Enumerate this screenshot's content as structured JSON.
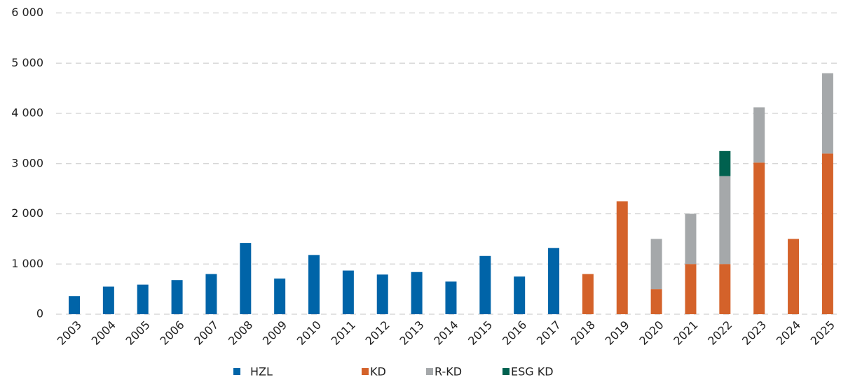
{
  "chart_data": {
    "type": "stacked_bar",
    "categories": [
      "2003",
      "2004",
      "2005",
      "2006",
      "2007",
      "2008",
      "2009",
      "2010",
      "2011",
      "2012",
      "2013",
      "2014",
      "2015",
      "2016",
      "2017",
      "2018",
      "2019",
      "2020",
      "2021",
      "2022",
      "2023",
      "2024",
      "2025"
    ],
    "series": [
      {
        "name": "HZL",
        "color": "#0064a8",
        "values": [
          360,
          550,
          590,
          680,
          800,
          1420,
          710,
          1180,
          870,
          790,
          840,
          650,
          1160,
          750,
          1320,
          null,
          null,
          null,
          null,
          null,
          null,
          null,
          null
        ]
      },
      {
        "name": "KD",
        "color": "#d4622a",
        "values": [
          null,
          null,
          null,
          null,
          null,
          null,
          null,
          null,
          null,
          null,
          null,
          null,
          null,
          null,
          null,
          800,
          2250,
          500,
          1000,
          1000,
          3020,
          1500,
          3200
        ]
      },
      {
        "name": "R-KD",
        "color": "#a5a8aa",
        "values": [
          null,
          null,
          null,
          null,
          null,
          null,
          null,
          null,
          null,
          null,
          null,
          null,
          null,
          null,
          null,
          null,
          null,
          1000,
          1000,
          1750,
          1100,
          null,
          1600
        ]
      },
      {
        "name": "ESG KD",
        "color": "#00614f",
        "values": [
          null,
          null,
          null,
          null,
          null,
          null,
          null,
          null,
          null,
          null,
          null,
          null,
          null,
          null,
          null,
          null,
          null,
          null,
          null,
          500,
          null,
          null,
          null
        ]
      }
    ],
    "ylim": [
      0,
      6000
    ],
    "yticks": [
      0,
      {
        "value": 1000,
        "label": "1 000"
      },
      {
        "value": 2000,
        "label": "2 000"
      },
      {
        "value": 3000,
        "label": "3 000"
      },
      {
        "value": 4000,
        "label": "4 000"
      },
      {
        "value": 5000,
        "label": "5 000"
      },
      {
        "value": 6000,
        "label": "6 000"
      }
    ],
    "grid": true
  }
}
